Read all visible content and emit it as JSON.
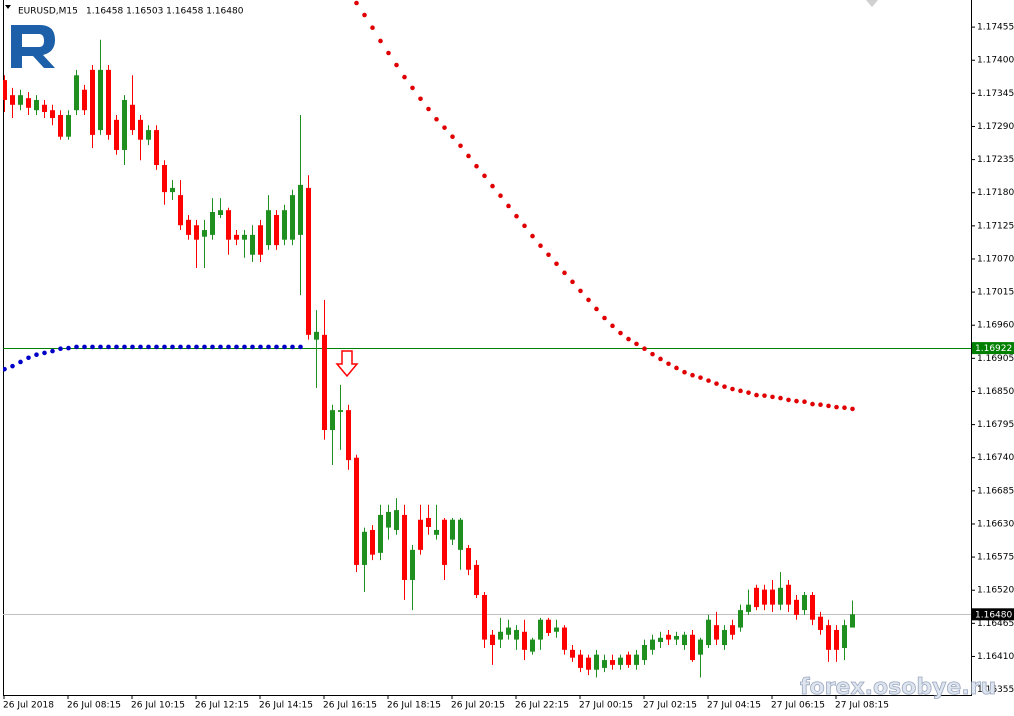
{
  "chart_data": {
    "type": "candlestick",
    "header": {
      "symbol": "EURUSD,M15",
      "quote": "1.16458 1.16503 1.16458 1.16480"
    },
    "watermark": "forex.osobye.ru",
    "up_color": "#1f8f1f",
    "down_color": "#ff0000",
    "categories": [
      "26 Jul 2018",
      null,
      null,
      null,
      null,
      null,
      null,
      null,
      "26 Jul 08:15",
      null,
      null,
      null,
      null,
      null,
      null,
      null,
      "26 Jul 10:15",
      null,
      null,
      null,
      null,
      null,
      null,
      null,
      "26 Jul 12:15",
      null,
      null,
      null,
      null,
      null,
      null,
      null,
      "26 Jul 14:15",
      null,
      null,
      null,
      null,
      null,
      null,
      null,
      "26 Jul 16:15",
      null,
      null,
      null,
      null,
      null,
      null,
      null,
      "26 Jul 18:15",
      null,
      null,
      null,
      null,
      null,
      null,
      null,
      "26 Jul 20:15",
      null,
      null,
      null,
      null,
      null,
      null,
      null,
      "26 Jul 22:15",
      null,
      null,
      null,
      null,
      null,
      null,
      null,
      "27 Jul 00:15",
      null,
      null,
      null,
      null,
      null,
      null,
      null,
      "27 Jul 02:15",
      null,
      null,
      null,
      null,
      null,
      null,
      null,
      "27 Jul 04:15",
      null,
      null,
      null,
      null,
      null,
      null,
      null,
      "27 Jul 06:15",
      null,
      null,
      null,
      null,
      null,
      null,
      null,
      "27 Jul 08:15",
      null,
      null
    ],
    "open": [
      1.17367,
      1.17342,
      1.17326,
      1.17337,
      1.17317,
      1.17326,
      1.17317,
      1.17309,
      1.17273,
      1.17317,
      1.17351,
      1.17384,
      1.17284,
      1.17384,
      1.17301,
      1.17251,
      1.17326,
      1.17301,
      1.17268,
      1.17284,
      1.17226,
      1.17181,
      1.17176,
      1.17135,
      1.17126,
      1.17107,
      1.1711,
      1.17143,
      1.17151,
      1.1711,
      1.17102,
      1.17077,
      1.17126,
      1.17093,
      1.17143,
      1.17102,
      1.17102,
      1.1711,
      1.17188,
      1.16936,
      1.16944,
      1.16786,
      1.16816,
      1.16819,
      1.1674,
      1.16562,
      1.1662,
      1.16582,
      1.16624,
      1.1662,
      1.16645,
      1.16537,
      1.16637,
      1.1664,
      1.16612,
      1.16637,
      1.16604,
      1.16587,
      1.1659,
      1.16562,
      1.16512,
      1.16446,
      1.16438,
      1.16446,
      1.16438,
      1.16451,
      1.16418,
      1.16438,
      1.16471,
      1.16451,
      1.16458,
      1.16421,
      1.16413,
      1.16408,
      1.16388,
      1.16391,
      1.16404,
      1.16396,
      1.16413,
      1.16396,
      1.16404,
      1.16421,
      1.16434,
      1.16446,
      1.16438,
      1.16429,
      1.16446,
      1.16413,
      1.16429,
      1.16462,
      1.16429,
      1.16462,
      1.16458,
      1.16484,
      1.16524,
      1.16521,
      1.16521,
      1.16496,
      1.16529,
      1.16504,
      1.16487,
      1.16512,
      1.16476,
      1.16462,
      1.16454,
      1.16424,
      1.16458
    ],
    "high": [
      1.17375,
      1.17354,
      1.17351,
      1.17347,
      1.17342,
      1.17334,
      1.17326,
      1.17317,
      1.17317,
      1.17384,
      1.17359,
      1.17392,
      1.17434,
      1.17392,
      1.17309,
      1.17342,
      1.17375,
      1.17309,
      1.17292,
      1.17292,
      1.17234,
      1.17201,
      1.17201,
      1.17143,
      1.17135,
      1.17135,
      1.17171,
      1.17171,
      1.17155,
      1.17118,
      1.17118,
      1.17126,
      1.17135,
      1.17176,
      1.17151,
      1.1716,
      1.17185,
      1.17309,
      1.17209,
      1.16985,
      1.17002,
      1.16828,
      1.16861,
      1.16828,
      1.16745,
      1.16624,
      1.16628,
      1.16662,
      1.16662,
      1.16673,
      1.16662,
      1.16595,
      1.16662,
      1.16662,
      1.16662,
      1.1664,
      1.1664,
      1.1664,
      1.16595,
      1.1657,
      1.16517,
      1.16454,
      1.16474,
      1.16471,
      1.16462,
      1.16471,
      1.16441,
      1.16474,
      1.16474,
      1.16471,
      1.16462,
      1.16429,
      1.16421,
      1.16413,
      1.16421,
      1.16413,
      1.16413,
      1.16413,
      1.16418,
      1.16421,
      1.16438,
      1.16446,
      1.16451,
      1.16454,
      1.16451,
      1.16451,
      1.16454,
      1.16441,
      1.16479,
      1.16484,
      1.16462,
      1.16471,
      1.16496,
      1.16521,
      1.16529,
      1.16529,
      1.16537,
      1.1655,
      1.16537,
      1.16512,
      1.16517,
      1.16517,
      1.16484,
      1.16471,
      1.16462,
      1.16471,
      1.16503
    ],
    "low": [
      1.17314,
      1.17304,
      1.17317,
      1.17309,
      1.17309,
      1.17304,
      1.17292,
      1.17268,
      1.17268,
      1.17309,
      1.17309,
      1.17254,
      1.17276,
      1.17268,
      1.17243,
      1.17226,
      1.17276,
      1.17234,
      1.17259,
      1.17218,
      1.1716,
      1.17168,
      1.17118,
      1.17102,
      1.17055,
      1.17055,
      1.17102,
      1.17138,
      1.17077,
      1.17093,
      1.17072,
      1.17065,
      1.17065,
      1.17085,
      1.17085,
      1.17093,
      1.17093,
      1.1701,
      1.16936,
      1.16856,
      1.1677,
      1.16728,
      1.16753,
      1.1672,
      1.1655,
      1.16517,
      1.1657,
      1.1657,
      1.16604,
      1.16612,
      1.16504,
      1.16487,
      1.16579,
      1.16612,
      1.16604,
      1.16537,
      1.16595,
      1.16554,
      1.16545,
      1.16507,
      1.16424,
      1.16396,
      1.16424,
      1.16438,
      1.16421,
      1.16404,
      1.16413,
      1.16421,
      1.16444,
      1.16441,
      1.16413,
      1.16401,
      1.16384,
      1.16379,
      1.16375,
      1.16384,
      1.16388,
      1.16388,
      1.16391,
      1.16388,
      1.16396,
      1.16413,
      1.16424,
      1.16429,
      1.16429,
      1.16421,
      1.16401,
      1.16375,
      1.16424,
      1.16429,
      1.16421,
      1.16438,
      1.16451,
      1.16479,
      1.16487,
      1.16487,
      1.16484,
      1.16487,
      1.16484,
      1.16471,
      1.16479,
      1.16462,
      1.16446,
      1.16401,
      1.16401,
      1.16404,
      1.16458
    ],
    "close": [
      1.17334,
      1.17326,
      1.17342,
      1.17321,
      1.17334,
      1.17314,
      1.17304,
      1.17273,
      1.17309,
      1.17375,
      1.17317,
      1.17276,
      1.17384,
      1.17276,
      1.17251,
      1.17334,
      1.17284,
      1.17268,
      1.17284,
      1.17226,
      1.17181,
      1.17188,
      1.17126,
      1.1711,
      1.17102,
      1.17118,
      1.17148,
      1.17151,
      1.17102,
      1.17102,
      1.1711,
      1.1711,
      1.17077,
      1.17151,
      1.17093,
      1.17151,
      1.17176,
      1.17193,
      1.16944,
      1.16949,
      1.16786,
      1.16819,
      1.16819,
      1.16736,
      1.16562,
      1.16617,
      1.16579,
      1.16645,
      1.1665,
      1.16653,
      1.16537,
      1.16587,
      1.16587,
      1.16625,
      1.1662,
      1.16562,
      1.16637,
      1.16637,
      1.16554,
      1.16512,
      1.16438,
      1.16429,
      1.16451,
      1.16458,
      1.16454,
      1.16421,
      1.16438,
      1.16471,
      1.16449,
      1.16458,
      1.16421,
      1.16408,
      1.16391,
      1.16388,
      1.16413,
      1.16404,
      1.16396,
      1.16408,
      1.16396,
      1.16413,
      1.16429,
      1.16438,
      1.16441,
      1.16438,
      1.16444,
      1.16446,
      1.16404,
      1.16438,
      1.16471,
      1.16438,
      1.16454,
      1.16446,
      1.16487,
      1.16496,
      1.16492,
      1.16496,
      1.16496,
      1.16524,
      1.16496,
      1.16479,
      1.16512,
      1.16471,
      1.16454,
      1.16421,
      1.16421,
      1.16462,
      1.1648
    ],
    "series": [
      {
        "color": "#0000c8",
        "values": [
          1.16887,
          1.16892,
          1.16899,
          1.16906,
          1.16911,
          1.16914,
          1.16917,
          1.16921,
          1.16922,
          1.16924,
          1.16924,
          1.16924,
          1.16924,
          1.16924,
          1.16924,
          1.16924,
          1.16924,
          1.16924,
          1.16924,
          1.16924,
          1.16924,
          1.16924,
          1.16924,
          1.16924,
          1.16924,
          1.16924,
          1.16924,
          1.16924,
          1.16924,
          1.16924,
          1.16924,
          1.16924,
          1.16924,
          1.16924,
          1.16924,
          1.16924,
          1.16924,
          1.16924,
          null,
          null,
          null,
          null,
          null,
          null,
          null,
          null,
          null,
          null,
          null,
          null,
          null,
          null,
          null,
          null,
          null,
          null,
          null,
          null,
          null,
          null,
          null,
          null,
          null,
          null,
          null,
          null,
          null,
          null,
          null,
          null,
          null,
          null,
          null,
          null,
          null,
          null,
          null,
          null,
          null,
          null,
          null,
          null,
          null,
          null,
          null,
          null,
          null,
          null,
          null,
          null,
          null,
          null,
          null,
          null,
          null,
          null,
          null,
          null,
          null,
          null,
          null,
          null,
          null,
          null,
          null,
          null,
          null
        ]
      },
      {
        "color": "#e00000",
        "values": [
          null,
          null,
          null,
          null,
          null,
          null,
          null,
          null,
          null,
          null,
          null,
          null,
          null,
          null,
          null,
          null,
          null,
          null,
          null,
          null,
          null,
          null,
          null,
          null,
          null,
          null,
          null,
          null,
          null,
          null,
          null,
          null,
          null,
          null,
          null,
          null,
          null,
          null,
          null,
          null,
          null,
          null,
          null,
          null,
          1.17495,
          1.17475,
          1.17454,
          1.17432,
          1.17412,
          1.17392,
          1.17372,
          1.17354,
          1.17336,
          1.17319,
          1.17302,
          1.17288,
          1.17273,
          1.17258,
          1.17241,
          1.17224,
          1.17208,
          1.17191,
          1.17175,
          1.17158,
          1.17141,
          1.17125,
          1.17108,
          1.17092,
          1.17077,
          1.17062,
          1.17047,
          1.17032,
          1.17017,
          1.17002,
          1.16987,
          1.16972,
          1.16959,
          1.16947,
          1.16937,
          1.16929,
          1.16921,
          1.16912,
          1.16904,
          1.16896,
          1.16889,
          1.16882,
          1.16877,
          1.16873,
          1.16868,
          1.16863,
          1.16858,
          1.16854,
          1.16851,
          1.16848,
          1.16844,
          1.16843,
          1.16841,
          1.16839,
          1.16836,
          1.16834,
          1.16833,
          1.16829,
          1.16828,
          1.16826,
          1.16824,
          1.16823,
          1.16821
        ]
      }
    ],
    "levels": [
      {
        "value": 1.16922,
        "label": "1.16922",
        "color": "#008000",
        "box_color": "#008000"
      },
      {
        "value": 1.1648,
        "label": "1.16480",
        "color": "#c0c0c0",
        "box_color": "#000000"
      }
    ],
    "ylim": [
      1.16346,
      1.175
    ],
    "yticks": [
      1.17455,
      {
        "value": 1.174,
        "label": "1.17400"
      },
      1.17345,
      {
        "value": 1.1729,
        "label": "1.17290"
      },
      1.17235,
      {
        "value": 1.1718,
        "label": "1.17180"
      },
      1.17125,
      {
        "value": 1.1707,
        "label": "1.17070"
      },
      1.17015,
      {
        "value": 1.1696,
        "label": "1.16960"
      },
      1.16905,
      {
        "value": 1.1685,
        "label": "1.16850"
      },
      1.16795,
      {
        "value": 1.1674,
        "label": "1.16740"
      },
      1.16685,
      {
        "value": 1.1663,
        "label": "1.16630"
      },
      1.16575,
      {
        "value": 1.1652,
        "label": "1.16520"
      },
      1.16465,
      {
        "value": 1.1641,
        "label": "1.16410"
      },
      1.16355
    ],
    "grid": false
  }
}
